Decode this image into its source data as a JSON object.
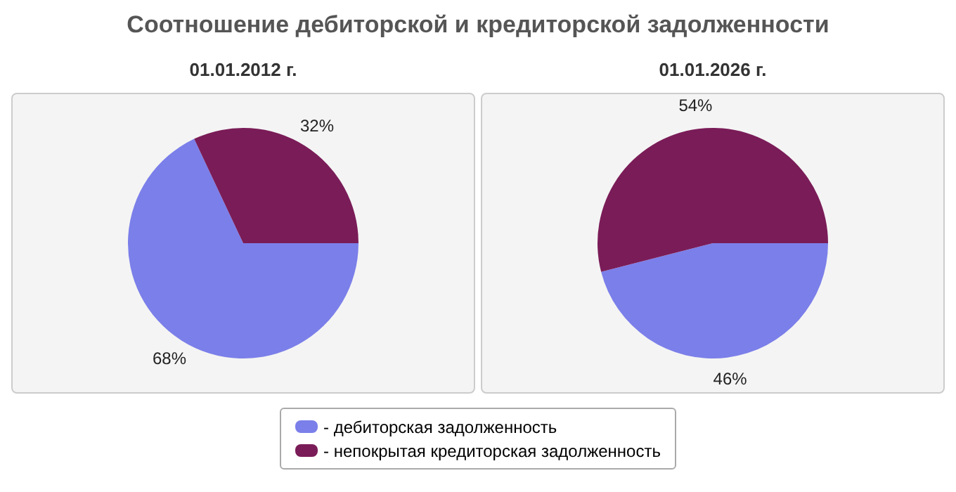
{
  "chart_data": [
    {
      "type": "pie",
      "title": "Соотношение дебиторской и кредиторской задолженности",
      "subtitle": "01.01.2012 г.",
      "categories": [
        "- дебиторская задолженность",
        "- непокрытая кредиторская задолженность"
      ],
      "values": [
        68,
        32
      ],
      "value_labels": [
        "68%",
        "32%"
      ],
      "colors": [
        "#7b7fe9",
        "#7a1c58"
      ],
      "legend": "bottom"
    },
    {
      "type": "pie",
      "title": "01.01.2026 г.",
      "categories": [
        null,
        null
      ],
      "values": [
        46,
        54
      ],
      "value_labels": [
        "46%",
        "54%"
      ],
      "colors": [
        "#7b7fe9",
        "#7a1c58"
      ]
    }
  ]
}
